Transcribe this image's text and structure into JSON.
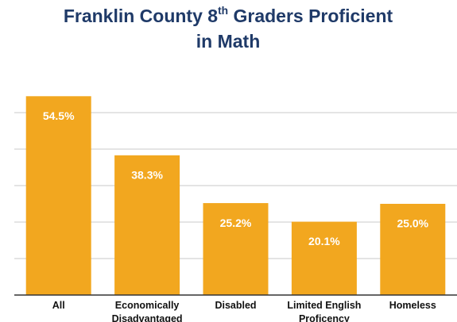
{
  "chart_data": {
    "type": "bar",
    "title": "Franklin County 8th Graders Proficient in Math",
    "categories": [
      "All",
      "Economically Disadvantaged",
      "Disabled",
      "Limited English Proficency",
      "Homeless"
    ],
    "values": [
      54.5,
      38.3,
      25.2,
      20.1,
      25.0
    ],
    "value_labels": [
      "54.5%",
      "38.3%",
      "25.2%",
      "20.1%",
      "25.0%"
    ],
    "color": "#f2a71f",
    "ylim": [
      0,
      60
    ],
    "yticks": [
      0,
      10,
      20,
      30,
      40,
      50
    ],
    "grid": true
  }
}
